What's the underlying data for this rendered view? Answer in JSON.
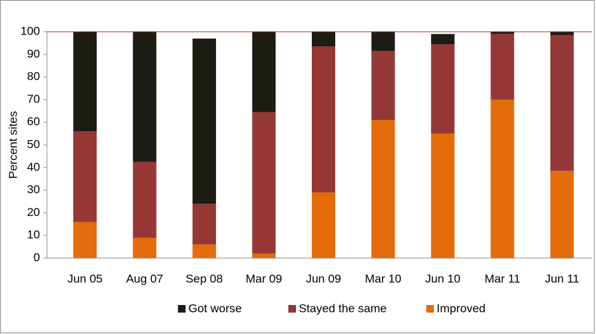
{
  "chart_data": {
    "type": "stacked_bar",
    "y_label": "Percent sites",
    "categories": [
      "Jun 05",
      "Aug 07",
      "Sep 08",
      "Mar 09",
      "Jun 09",
      "Mar 10",
      "Jun 10",
      "Mar 11",
      "Jun 11"
    ],
    "series": [
      {
        "name": "Got worse",
        "color": "#1c1c14",
        "values": [
          44,
          57.5,
          73,
          35.5,
          6.5,
          8.5,
          4.5,
          1,
          1.5
        ]
      },
      {
        "name": "Stayed the same",
        "color": "#953735",
        "values": [
          40,
          33.5,
          18,
          62.5,
          64.5,
          30.5,
          39.5,
          29,
          60
        ]
      },
      {
        "name": "Improved",
        "color": "#e46c0a",
        "values": [
          16,
          9,
          6,
          2,
          29,
          61,
          55,
          70,
          38.5
        ]
      }
    ],
    "ylim": [
      0,
      100
    ],
    "yticks": [
      0,
      10,
      20,
      30,
      40,
      50,
      60,
      70,
      80,
      90,
      100
    ],
    "legend": "bottom"
  }
}
